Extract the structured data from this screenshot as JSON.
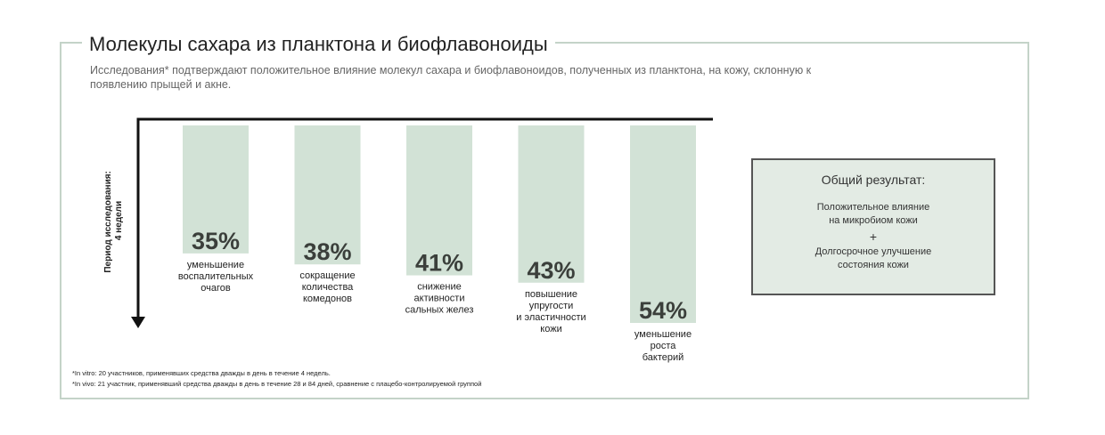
{
  "header": {
    "title": "Молекулы сахара из планктона и биофлавоноиды",
    "subtitle": "Исследования* подтверждают положительное влияние молекул сахара и биофлавоноидов, полученных из планктона, на кожу, склонную к появлению прыщей и акне."
  },
  "chart_data": {
    "type": "bar",
    "ylabel_lines": [
      "Период исследования:",
      "4 недели"
    ],
    "ylim": [
      0,
      60
    ],
    "categories": [
      [
        "уменьшение",
        "воспалительных",
        "очагов"
      ],
      [
        "сокращение",
        "количества",
        "комедонов"
      ],
      [
        "снижение",
        "активности",
        "сальных желез"
      ],
      [
        "повышение",
        "упругости",
        "и эластичности",
        "кожи"
      ],
      [
        "уменьшение",
        "роста",
        "бактерий"
      ]
    ],
    "values": [
      35,
      38,
      41,
      43,
      54
    ],
    "value_labels": [
      "35%",
      "38%",
      "41%",
      "43%",
      "54%"
    ],
    "colors": {
      "bar": "#d2e2d6",
      "axis": "#111111"
    }
  },
  "result": {
    "title": "Общий результат:",
    "line1": "Положительное влияние",
    "line2": "на микробиом кожи",
    "plus": "+",
    "line3": "Долгосрочное улучшение",
    "line4": "состояния кожи"
  },
  "footnotes": {
    "note1": "*In vitro: 20 участников, применявших средства дважды в день в течение 4 недель.",
    "note2": "*In vivo: 21 участник, применявший средства дважды в день в течение 28 и 84 дней, сравнение с плацебо-контролируемой группой"
  },
  "colors": {
    "frame": "#c4d3c8",
    "result_bg": "#e3ebe4"
  }
}
